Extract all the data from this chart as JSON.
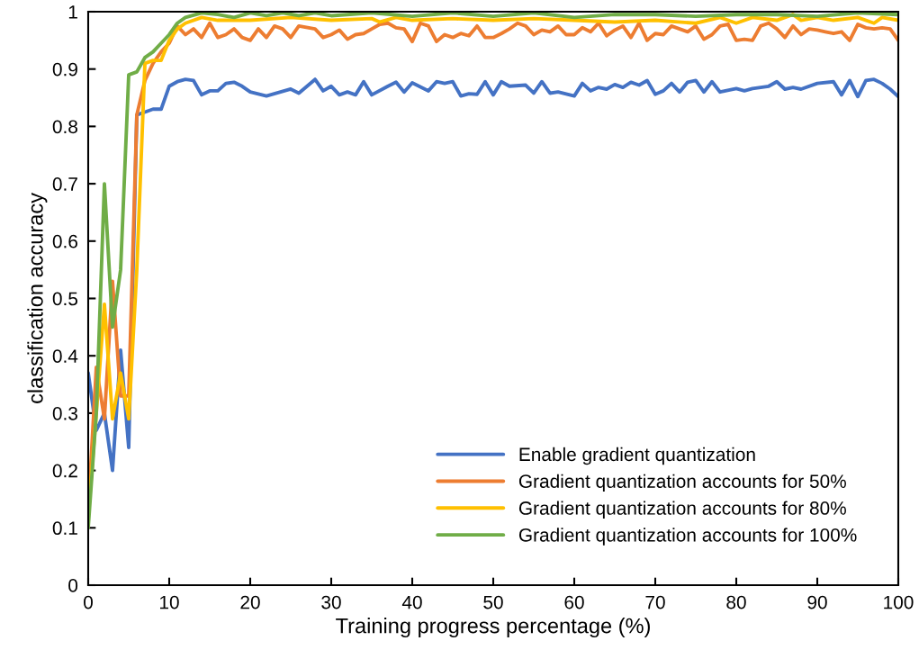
{
  "chart_data": {
    "type": "line",
    "xlabel": "Training progress percentage (%)",
    "ylabel": "classification accuracy",
    "xlim": [
      0,
      100
    ],
    "xticks": [
      0,
      10,
      20,
      30,
      40,
      50,
      60,
      70,
      80,
      90,
      100
    ],
    "ylim": [
      0,
      1
    ],
    "yticks": [
      0,
      0.1,
      0.2,
      0.3,
      0.4,
      0.5,
      0.6,
      0.7,
      0.8,
      0.9,
      1
    ],
    "grid": false,
    "legend": "bottom right",
    "marker": "none",
    "line_style": "solid",
    "series": [
      {
        "name": "Enable gradient quantization",
        "color": "#4472c4",
        "x": [
          0,
          1,
          2,
          3,
          4,
          5,
          6,
          7,
          8,
          9,
          10,
          11,
          12,
          13,
          14,
          15,
          16,
          17,
          18,
          19,
          20,
          22,
          25,
          26,
          28,
          29,
          30,
          31,
          32,
          33,
          34,
          35,
          37,
          38,
          39,
          40,
          42,
          43,
          44,
          45,
          46,
          47,
          48,
          49,
          50,
          51,
          52,
          54,
          55,
          56,
          57,
          58,
          60,
          61,
          62,
          63,
          64,
          65,
          66,
          67,
          68,
          69,
          70,
          71,
          72,
          73,
          74,
          75,
          76,
          77,
          78,
          80,
          81,
          82,
          84,
          85,
          86,
          87,
          88,
          90,
          92,
          93,
          94,
          95,
          96,
          97,
          98,
          99,
          100
        ],
        "values": [
          0.37,
          0.27,
          0.3,
          0.2,
          0.41,
          0.24,
          0.82,
          0.825,
          0.83,
          0.83,
          0.87,
          0.878,
          0.882,
          0.88,
          0.855,
          0.862,
          0.862,
          0.875,
          0.877,
          0.87,
          0.86,
          0.853,
          0.865,
          0.858,
          0.882,
          0.862,
          0.87,
          0.855,
          0.86,
          0.855,
          0.878,
          0.855,
          0.87,
          0.877,
          0.86,
          0.876,
          0.862,
          0.878,
          0.875,
          0.878,
          0.853,
          0.857,
          0.856,
          0.878,
          0.855,
          0.878,
          0.87,
          0.872,
          0.858,
          0.878,
          0.858,
          0.86,
          0.853,
          0.875,
          0.862,
          0.868,
          0.865,
          0.873,
          0.868,
          0.877,
          0.872,
          0.88,
          0.856,
          0.862,
          0.875,
          0.86,
          0.877,
          0.88,
          0.86,
          0.878,
          0.86,
          0.866,
          0.862,
          0.866,
          0.87,
          0.878,
          0.865,
          0.868,
          0.865,
          0.875,
          0.878,
          0.855,
          0.88,
          0.852,
          0.88,
          0.882,
          0.875,
          0.865,
          0.852
        ]
      },
      {
        "name": "Gradient quantization accounts for 50%",
        "color": "#ed7d31",
        "x": [
          0,
          1,
          2,
          3,
          4,
          5,
          6,
          7,
          8,
          9,
          10,
          11,
          12,
          13,
          14,
          15,
          16,
          17,
          18,
          19,
          20,
          21,
          22,
          23,
          24,
          25,
          26,
          28,
          29,
          30,
          31,
          32,
          33,
          34,
          35,
          36,
          37,
          38,
          39,
          40,
          41,
          42,
          43,
          44,
          45,
          46,
          47,
          48,
          49,
          50,
          51,
          52,
          53,
          54,
          55,
          56,
          57,
          58,
          59,
          60,
          61,
          62,
          63,
          64,
          65,
          66,
          67,
          68,
          69,
          70,
          71,
          72,
          73,
          74,
          75,
          76,
          77,
          78,
          79,
          80,
          81,
          82,
          83,
          84,
          85,
          86,
          87,
          88,
          89,
          90,
          91,
          92,
          93,
          94,
          95,
          96,
          97,
          98,
          99,
          100
        ],
        "values": [
          0.13,
          0.38,
          0.29,
          0.53,
          0.33,
          0.33,
          0.82,
          0.88,
          0.91,
          0.93,
          0.945,
          0.975,
          0.96,
          0.97,
          0.955,
          0.98,
          0.955,
          0.96,
          0.97,
          0.955,
          0.95,
          0.97,
          0.955,
          0.975,
          0.97,
          0.955,
          0.975,
          0.97,
          0.955,
          0.96,
          0.968,
          0.952,
          0.96,
          0.962,
          0.97,
          0.978,
          0.98,
          0.972,
          0.97,
          0.948,
          0.98,
          0.975,
          0.948,
          0.96,
          0.955,
          0.962,
          0.958,
          0.975,
          0.955,
          0.955,
          0.962,
          0.97,
          0.98,
          0.975,
          0.96,
          0.968,
          0.965,
          0.975,
          0.96,
          0.96,
          0.972,
          0.965,
          0.98,
          0.958,
          0.968,
          0.975,
          0.955,
          0.98,
          0.95,
          0.962,
          0.96,
          0.975,
          0.97,
          0.965,
          0.975,
          0.952,
          0.96,
          0.975,
          0.978,
          0.95,
          0.952,
          0.95,
          0.975,
          0.98,
          0.97,
          0.955,
          0.975,
          0.96,
          0.97,
          0.968,
          0.965,
          0.962,
          0.965,
          0.95,
          0.978,
          0.972,
          0.97,
          0.972,
          0.97,
          0.95
        ]
      },
      {
        "name": "Gradient quantization accounts for 80%",
        "color": "#ffc000",
        "x": [
          0,
          1,
          2,
          3,
          4,
          5,
          6,
          7,
          8,
          9,
          10,
          11,
          12,
          14,
          16,
          20,
          25,
          30,
          35,
          36,
          38,
          40,
          45,
          50,
          55,
          60,
          65,
          70,
          75,
          78,
          80,
          82,
          85,
          87,
          88,
          90,
          92,
          95,
          97,
          98,
          100
        ],
        "values": [
          0.12,
          0.3,
          0.49,
          0.29,
          0.37,
          0.29,
          0.55,
          0.91,
          0.915,
          0.915,
          0.95,
          0.97,
          0.98,
          0.99,
          0.985,
          0.985,
          0.99,
          0.985,
          0.988,
          0.982,
          0.99,
          0.985,
          0.988,
          0.985,
          0.988,
          0.985,
          0.982,
          0.985,
          0.98,
          0.99,
          0.98,
          0.99,
          0.985,
          0.995,
          0.985,
          0.99,
          0.985,
          0.99,
          0.98,
          0.99,
          0.985
        ]
      },
      {
        "name": "Gradient quantization accounts for 100%",
        "color": "#70ad47",
        "x": [
          0,
          1,
          2,
          3,
          4,
          5,
          6,
          7,
          8,
          9,
          10,
          11,
          12,
          14,
          16,
          18,
          20,
          22,
          24,
          26,
          28,
          30,
          35,
          40,
          45,
          50,
          55,
          60,
          65,
          70,
          75,
          80,
          85,
          90,
          95,
          100
        ],
        "values": [
          0.1,
          0.3,
          0.7,
          0.45,
          0.55,
          0.89,
          0.895,
          0.92,
          0.93,
          0.945,
          0.96,
          0.98,
          0.99,
          0.998,
          0.995,
          0.99,
          0.998,
          0.993,
          0.998,
          0.993,
          0.998,
          0.993,
          0.998,
          0.992,
          0.998,
          0.992,
          0.998,
          0.99,
          0.995,
          0.995,
          0.992,
          0.995,
          0.995,
          0.992,
          0.998,
          0.995
        ]
      }
    ]
  }
}
